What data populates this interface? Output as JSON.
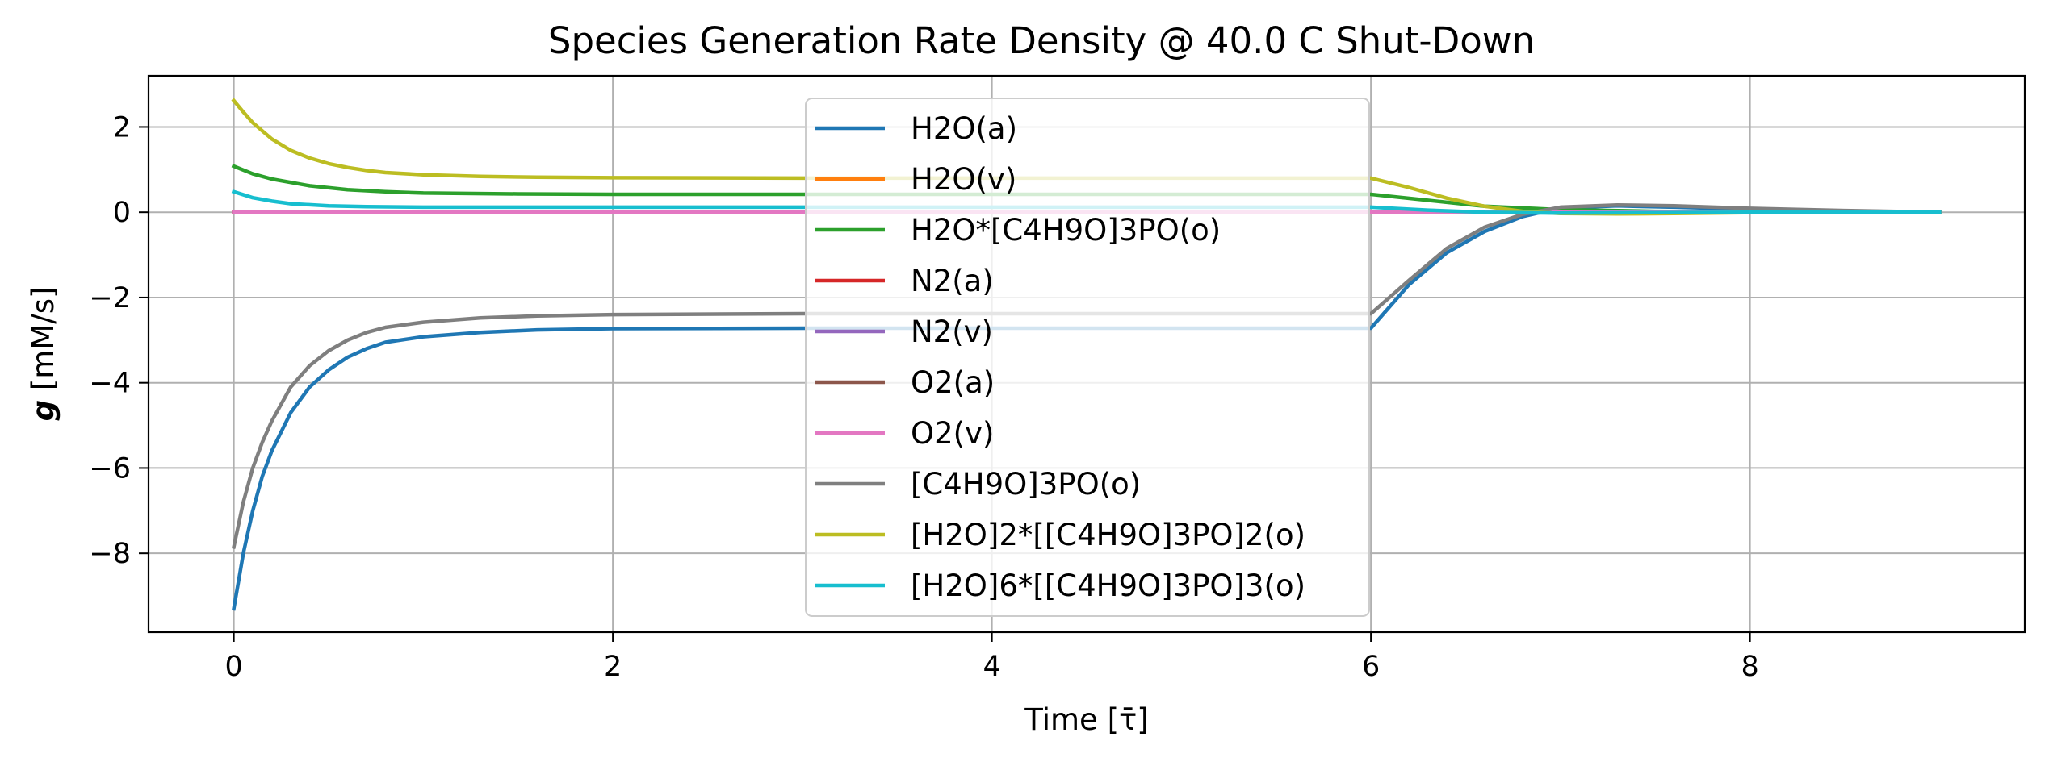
{
  "chart_data": {
    "type": "line",
    "title": "Species Generation Rate Density @ 40.0 C Shut-Down",
    "xlabel": "Time [τ̄]",
    "ylabel_symbol": "g",
    "ylabel_unit": " [mM/s]",
    "xlim": [
      -0.45,
      9.45
    ],
    "ylim": [
      -9.85,
      3.2
    ],
    "xticks": [
      0,
      2,
      4,
      6,
      8
    ],
    "xtick_labels": [
      "0",
      "2",
      "4",
      "6",
      "8"
    ],
    "yticks": [
      2,
      0,
      -2,
      -4,
      -6,
      -8
    ],
    "ytick_labels": [
      "2",
      "0",
      "−2",
      "−4",
      "−6",
      "−8"
    ],
    "grid": true,
    "legend_position": "upper-center",
    "series": [
      {
        "name": "H2O(a)",
        "color": "#1f77b4",
        "x": [
          0,
          0.05,
          0.1,
          0.15,
          0.2,
          0.3,
          0.4,
          0.5,
          0.6,
          0.7,
          0.8,
          1.0,
          1.3,
          1.6,
          2.0,
          3.0,
          4.0,
          5.0,
          6.0,
          6.2,
          6.4,
          6.6,
          6.8,
          7.0,
          7.3,
          7.6,
          8.0,
          8.5,
          9.0
        ],
        "y": [
          -9.3,
          -8.0,
          -7.0,
          -6.2,
          -5.6,
          -4.7,
          -4.1,
          -3.7,
          -3.4,
          -3.2,
          -3.05,
          -2.92,
          -2.82,
          -2.76,
          -2.73,
          -2.72,
          -2.72,
          -2.72,
          -2.72,
          -1.7,
          -0.95,
          -0.45,
          -0.1,
          0.1,
          0.15,
          0.12,
          0.07,
          0.03,
          0.0
        ]
      },
      {
        "name": "H2O(v)",
        "color": "#ff7f0e",
        "x": [
          0,
          9.0
        ],
        "y": [
          0.0,
          0.0
        ]
      },
      {
        "name": "H2O*[C4H9O]3PO(o)",
        "color": "#2ca02c",
        "x": [
          0,
          0.1,
          0.2,
          0.4,
          0.6,
          0.8,
          1.0,
          1.5,
          2.0,
          3.0,
          4.0,
          5.0,
          6.0,
          6.3,
          6.6,
          7.0,
          7.5,
          8.0,
          9.0
        ],
        "y": [
          1.08,
          0.9,
          0.78,
          0.62,
          0.53,
          0.48,
          0.45,
          0.43,
          0.42,
          0.42,
          0.42,
          0.42,
          0.42,
          0.28,
          0.14,
          0.06,
          0.02,
          0.01,
          0.0
        ]
      },
      {
        "name": "N2(a)",
        "color": "#d62728",
        "x": [
          0,
          9.0
        ],
        "y": [
          0.0,
          0.0
        ]
      },
      {
        "name": "N2(v)",
        "color": "#9467bd",
        "x": [
          0,
          9.0
        ],
        "y": [
          0.0,
          0.0
        ]
      },
      {
        "name": "O2(a)",
        "color": "#8c564b",
        "x": [
          0,
          9.0
        ],
        "y": [
          0.0,
          0.0
        ]
      },
      {
        "name": "O2(v)",
        "color": "#e377c2",
        "x": [
          0,
          9.0
        ],
        "y": [
          0.0,
          0.0
        ]
      },
      {
        "name": "[C4H9O]3PO(o)",
        "color": "#7f7f7f",
        "x": [
          0,
          0.05,
          0.1,
          0.15,
          0.2,
          0.3,
          0.4,
          0.5,
          0.6,
          0.7,
          0.8,
          1.0,
          1.3,
          1.6,
          2.0,
          3.0,
          4.0,
          5.0,
          6.0,
          6.2,
          6.4,
          6.6,
          6.8,
          7.0,
          7.3,
          7.6,
          8.0,
          8.5,
          9.0
        ],
        "y": [
          -7.85,
          -6.8,
          -6.0,
          -5.4,
          -4.9,
          -4.1,
          -3.6,
          -3.25,
          -3.0,
          -2.82,
          -2.7,
          -2.58,
          -2.48,
          -2.43,
          -2.4,
          -2.38,
          -2.38,
          -2.38,
          -2.38,
          -1.6,
          -0.85,
          -0.35,
          -0.05,
          0.12,
          0.17,
          0.15,
          0.09,
          0.04,
          0.0
        ]
      },
      {
        "name": "[H2O]2*[[C4H9O]3PO]2(o)",
        "color": "#bcbd22",
        "x": [
          0,
          0.05,
          0.1,
          0.2,
          0.3,
          0.4,
          0.5,
          0.6,
          0.7,
          0.8,
          1.0,
          1.3,
          1.6,
          2.0,
          3.0,
          4.0,
          5.0,
          6.0,
          6.2,
          6.4,
          6.6,
          6.8,
          7.0,
          7.3,
          7.6,
          8.0,
          9.0
        ],
        "y": [
          2.62,
          2.35,
          2.1,
          1.72,
          1.45,
          1.27,
          1.14,
          1.05,
          0.98,
          0.93,
          0.88,
          0.84,
          0.82,
          0.81,
          0.8,
          0.8,
          0.8,
          0.8,
          0.58,
          0.33,
          0.14,
          0.02,
          -0.03,
          -0.04,
          -0.03,
          -0.01,
          0.0
        ]
      },
      {
        "name": "[H2O]6*[[C4H9O]3PO]3(o)",
        "color": "#17becf",
        "x": [
          0,
          0.1,
          0.2,
          0.3,
          0.5,
          0.7,
          1.0,
          1.5,
          2.0,
          3.0,
          4.0,
          5.0,
          6.0,
          6.3,
          6.6,
          7.0,
          7.5,
          8.0,
          9.0
        ],
        "y": [
          0.48,
          0.34,
          0.26,
          0.2,
          0.15,
          0.13,
          0.12,
          0.12,
          0.12,
          0.12,
          0.12,
          0.12,
          0.12,
          0.05,
          0.0,
          -0.02,
          -0.01,
          0.0,
          0.0
        ]
      }
    ]
  }
}
